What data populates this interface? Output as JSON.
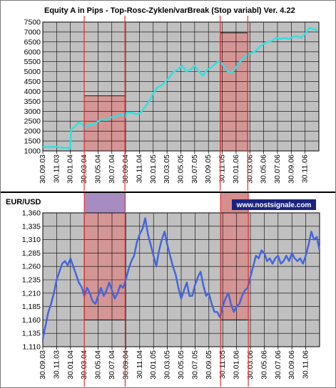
{
  "chart_data": [
    {
      "type": "line",
      "title": "Equity A in Pips - Top-Rosc-Zyklen/varBreak (Stop variabl) Ver. 4.22",
      "ylabel": "",
      "xlabel": "",
      "ylim": [
        1000,
        7500
      ],
      "y_ticks": [
        "1000",
        "1500",
        "2000",
        "2500",
        "3000",
        "3500",
        "4000",
        "4500",
        "5000",
        "5500",
        "6000",
        "6500",
        "7000",
        "7500"
      ],
      "x_ticks": [
        "30.09.03",
        "30.11.03",
        "30.01.04",
        "30.03.04",
        "30.05.04",
        "30.07.04",
        "30.09.04",
        "30.11.04",
        "30.01.05",
        "30.03.05",
        "30.05.05",
        "30.07.05",
        "30.09.05",
        "30.11.05",
        "30.01.06",
        "30.03.06",
        "30.05.06",
        "30.07.06",
        "30.09.06",
        "30.11.06"
      ],
      "grid": true,
      "series": [
        {
          "color": "#33e0e0",
          "x": [
            0,
            1,
            1.5,
            2,
            2.05,
            2.3,
            2.6,
            2.9,
            3.1,
            3.4,
            3.7,
            4.0,
            4.3,
            4.6,
            4.9,
            5.2,
            5.5,
            5.8,
            6.0,
            6.05,
            6.3,
            6.6,
            6.8,
            7.0,
            7.05,
            7.4,
            7.7,
            8.0,
            8.3,
            8.6,
            8.9,
            9.2,
            9.5,
            9.8,
            10.1,
            10.4,
            10.7,
            11.0,
            11.3,
            11.6,
            11.9,
            12.2,
            12.5,
            12.8,
            13.1,
            13.4,
            13.7,
            14.0,
            14.3,
            14.6,
            14.9,
            15.2,
            15.5,
            15.8,
            16.0,
            16.3,
            16.6,
            16.9,
            17.2,
            17.5,
            17.8,
            18.1,
            18.4,
            18.7,
            19.0,
            19.3,
            19.6,
            19.9
          ],
          "values": [
            1200,
            1200,
            1150,
            1150,
            2100,
            2200,
            2450,
            2300,
            2150,
            2350,
            2300,
            2500,
            2600,
            2550,
            2700,
            2700,
            2800,
            2850,
            2700,
            2900,
            2950,
            2900,
            2850,
            2900,
            2900,
            3200,
            3500,
            3900,
            4200,
            4300,
            4500,
            4750,
            5000,
            5100,
            5300,
            5000,
            5100,
            5300,
            5000,
            4800,
            5100,
            5200,
            5400,
            5550,
            5300,
            5000,
            4950,
            5200,
            5500,
            5700,
            5900,
            5950,
            6100,
            6300,
            6400,
            6500,
            6550,
            6700,
            6650,
            6700,
            6650,
            6750,
            6800,
            6700,
            6900,
            7200,
            7150,
            7100
          ]
        }
      ],
      "highlights": [
        {
          "x_from": 3.0,
          "x_to": 5.95,
          "y_from": 1000,
          "y_to": 3780
        },
        {
          "x_from": 12.85,
          "x_to": 14.85,
          "y_from": 1000,
          "y_to": 6960
        }
      ],
      "vertical_lines_x": [
        3.0,
        5.95,
        12.85,
        14.85
      ]
    },
    {
      "type": "line",
      "title": "EUR/USD",
      "ylabel": "",
      "xlabel": "",
      "ylim": [
        1.11,
        1.36
      ],
      "y_ticks": [
        "1,110",
        "1,135",
        "1,160",
        "1,185",
        "1,210",
        "1,235",
        "1,260",
        "1,285",
        "1,310",
        "1,335",
        "1,360"
      ],
      "x_ticks": [
        "30.09.03",
        "30.11.03",
        "30.01.04",
        "30.03.04",
        "30.05.04",
        "30.07.04",
        "30.09.04",
        "30.11.04",
        "30.01.05",
        "30.03.05",
        "30.05.05",
        "30.07.05",
        "30.09.05",
        "30.11.05",
        "30.01.06",
        "30.03.06",
        "30.05.06",
        "30.07.06",
        "30.09.06",
        "30.11.06"
      ],
      "grid": true,
      "annotation": "www.nostsignale.com",
      "series": [
        {
          "color": "#4466dd",
          "x": [
            0,
            0.2,
            0.4,
            0.6,
            0.8,
            1.0,
            1.2,
            1.4,
            1.6,
            1.8,
            2.0,
            2.2,
            2.4,
            2.6,
            2.8,
            3.0,
            3.2,
            3.4,
            3.6,
            3.8,
            4.0,
            4.2,
            4.4,
            4.6,
            4.8,
            5.0,
            5.2,
            5.4,
            5.6,
            5.8,
            6.0,
            6.2,
            6.4,
            6.6,
            6.8,
            7.0,
            7.2,
            7.4,
            7.6,
            7.8,
            8.0,
            8.2,
            8.4,
            8.6,
            8.8,
            9.0,
            9.2,
            9.4,
            9.6,
            9.8,
            10.0,
            10.2,
            10.4,
            10.6,
            10.8,
            11.0,
            11.2,
            11.4,
            11.6,
            11.8,
            12.0,
            12.2,
            12.4,
            12.6,
            12.8,
            13.0,
            13.2,
            13.4,
            13.6,
            13.8,
            14.0,
            14.2,
            14.4,
            14.6,
            14.8,
            15.0,
            15.2,
            15.4,
            15.6,
            15.8,
            16.0,
            16.2,
            16.4,
            16.6,
            16.8,
            17.0,
            17.2,
            17.4,
            17.6,
            17.8,
            18.0,
            18.2,
            18.4,
            18.6,
            18.8,
            19.0,
            19.2,
            19.4,
            19.6,
            19.8,
            20.0
          ],
          "values": [
            1.125,
            1.15,
            1.175,
            1.19,
            1.21,
            1.235,
            1.25,
            1.265,
            1.27,
            1.262,
            1.275,
            1.26,
            1.245,
            1.23,
            1.222,
            1.205,
            1.22,
            1.21,
            1.195,
            1.19,
            1.205,
            1.22,
            1.205,
            1.215,
            1.23,
            1.215,
            1.2,
            1.21,
            1.225,
            1.22,
            1.235,
            1.255,
            1.27,
            1.28,
            1.305,
            1.32,
            1.33,
            1.35,
            1.32,
            1.3,
            1.28,
            1.26,
            1.29,
            1.31,
            1.325,
            1.3,
            1.28,
            1.26,
            1.245,
            1.22,
            1.2,
            1.215,
            1.23,
            1.205,
            1.205,
            1.225,
            1.24,
            1.25,
            1.225,
            1.205,
            1.21,
            1.19,
            1.175,
            1.175,
            1.165,
            1.185,
            1.2,
            1.21,
            1.19,
            1.175,
            1.185,
            1.19,
            1.205,
            1.215,
            1.22,
            1.24,
            1.26,
            1.28,
            1.275,
            1.29,
            1.285,
            1.27,
            1.275,
            1.265,
            1.275,
            1.28,
            1.265,
            1.27,
            1.28,
            1.27,
            1.285,
            1.275,
            1.27,
            1.275,
            1.265,
            1.28,
            1.3,
            1.325,
            1.31,
            1.315,
            1.29
          ]
        }
      ],
      "highlights": [
        {
          "x_from": 3.0,
          "x_to": 5.95,
          "y_from": 1.16,
          "y_to": 1.36
        },
        {
          "x_from": 12.85,
          "x_to": 14.85,
          "y_from": 1.16,
          "y_to": 1.36
        }
      ],
      "vertical_lines_x": [
        3.0,
        5.95,
        12.85,
        14.85
      ]
    }
  ],
  "colors": {
    "plot_background": "#c0c0c0",
    "outer_background": "#ffffff",
    "highlight_fill": "#d78d8d",
    "highlight_stroke": "#1a1a1a",
    "split_band": "#a78cc2",
    "vertical_line": "#e03030",
    "annotation_bg": "#1a237e",
    "annotation_text": "#ffffff"
  }
}
